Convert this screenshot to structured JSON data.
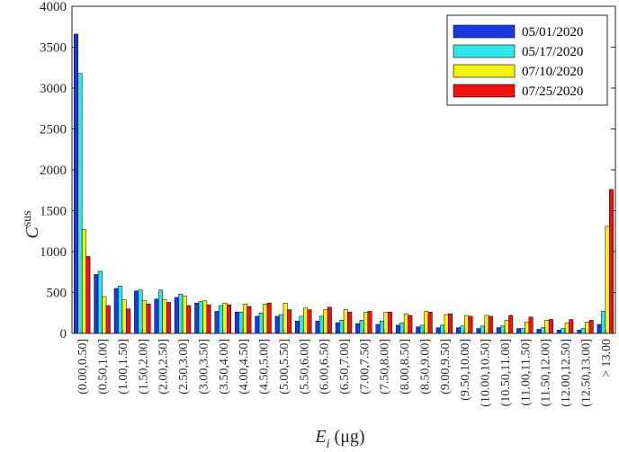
{
  "chart_data": {
    "type": "bar",
    "title": "",
    "xlabel_main": "E",
    "xlabel_sub": "i",
    "xlabel_unit": " (μg)",
    "ylabel_main": "C",
    "ylabel_sup": "sus",
    "ylim": [
      0,
      4000
    ],
    "yticks": [
      0,
      500,
      1000,
      1500,
      2000,
      2500,
      3000,
      3500,
      4000
    ],
    "legend_position": "top-right",
    "grid": false,
    "categories": [
      "(0.00,0.50]",
      "(0.50,1.00]",
      "(1.00,1.50]",
      "(1.50,2.00]",
      "(2.00,2.50]",
      "(2.50,3.00]",
      "(3.00,3.50]",
      "(3.50,4.00]",
      "(4.00,4.50]",
      "(4.50,5.00]",
      "(5.00,5.50]",
      "(5.50,6.00]",
      "(6.00,6.50]",
      "(6.50,7.00]",
      "(7.00,7.50]",
      "(7.50,8.00]",
      "(8.00,8.50]",
      "(8.50,9.00]",
      "(9.00,9.50]",
      "(9.50,10.00]",
      "(10.00,10.50]",
      "(10.50,11.00]",
      "(11.00,11.50]",
      "(11.50,12.00]",
      "(12.00,12.50]",
      "(12.50,13.00]",
      "> 13.00"
    ],
    "series": [
      {
        "name": "05/01/2020",
        "color": "#1a3ae0",
        "values": [
          3660,
          720,
          550,
          520,
          420,
          440,
          370,
          270,
          260,
          210,
          210,
          150,
          150,
          130,
          120,
          110,
          100,
          80,
          70,
          70,
          60,
          70,
          60,
          50,
          40,
          40,
          110
        ]
      },
      {
        "name": "05/17/2020",
        "color": "#33e6e6",
        "values": [
          3180,
          760,
          580,
          530,
          530,
          480,
          390,
          340,
          260,
          250,
          230,
          210,
          210,
          160,
          160,
          150,
          130,
          100,
          100,
          90,
          90,
          90,
          60,
          70,
          60,
          60,
          270
        ]
      },
      {
        "name": "07/10/2020",
        "color": "#f2f20d",
        "values": [
          1270,
          450,
          410,
          400,
          410,
          460,
          400,
          370,
          360,
          360,
          370,
          310,
          290,
          290,
          260,
          260,
          240,
          270,
          230,
          220,
          220,
          160,
          140,
          160,
          130,
          140,
          1310
        ]
      },
      {
        "name": "07/25/2020",
        "color": "#f01010",
        "values": [
          940,
          340,
          300,
          360,
          380,
          340,
          350,
          350,
          330,
          370,
          290,
          290,
          320,
          260,
          270,
          260,
          220,
          260,
          240,
          210,
          210,
          220,
          200,
          170,
          170,
          160,
          1760
        ]
      }
    ]
  }
}
